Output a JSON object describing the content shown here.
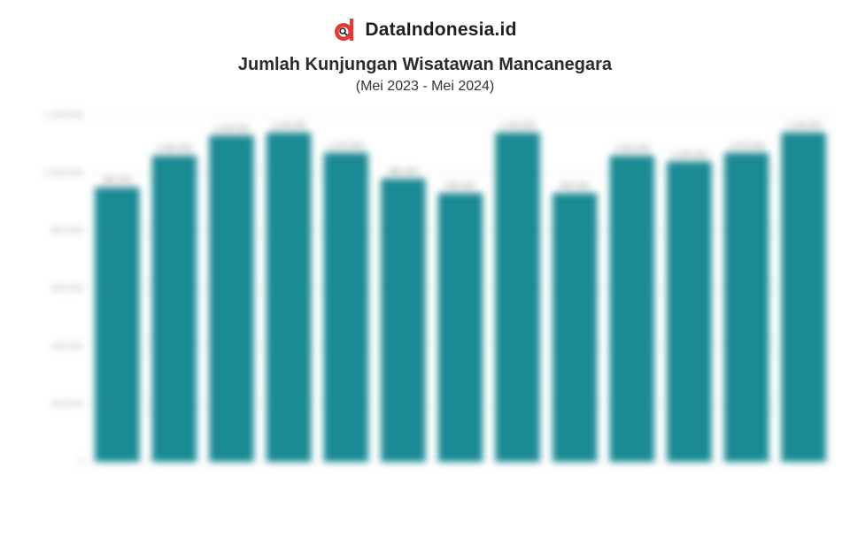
{
  "brand": {
    "name": "DataIndonesia.id",
    "icon": "dataindonesia-logo-icon",
    "color": "#e53935"
  },
  "chart_data": {
    "type": "bar",
    "title": "Jumlah Kunjungan Wisatawan Mancanegara",
    "subtitle": "(Mei 2023 - Mei 2024)",
    "ylabel": "",
    "xlabel": "",
    "source": "",
    "ylim": [
      0,
      1200000
    ],
    "yticks": [
      0,
      200000,
      400000,
      600000,
      800000,
      1000000,
      1200000
    ],
    "ytick_labels": [
      "0",
      "200.000",
      "400.000",
      "600.000",
      "800.000",
      "1.000.000",
      "1.200.000"
    ],
    "categories": [
      "",
      "",
      "",
      "",
      "",
      "",
      "",
      "",
      "",
      "",
      "",
      "",
      ""
    ],
    "values": [
      950000,
      1060000,
      1130000,
      1140000,
      1070000,
      980000,
      930000,
      1140000,
      930000,
      1060000,
      1040000,
      1070000,
      1140000
    ],
    "bar_color": "#1a8a93",
    "grid": true,
    "legend": "none"
  }
}
